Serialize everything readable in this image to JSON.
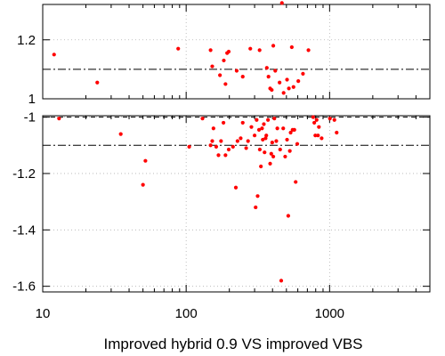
{
  "chart_data": {
    "type": "scatter",
    "xlabel": "Improved hybrid 0.9 VS improved VBS",
    "x_scale": "log",
    "xlim": [
      10,
      5000
    ],
    "x_ticks": [
      10,
      100,
      1000
    ],
    "x_tick_labels": [
      "10",
      "100",
      "1000"
    ],
    "grid": true,
    "point_color": "#ff0000",
    "panels": [
      {
        "name": "upper",
        "ylim": [
          1.0,
          1.32
        ],
        "y_ticks": [
          1.0,
          1.2
        ],
        "y_tick_labels": [
          "1",
          "1.2"
        ],
        "ref_lines": [
          {
            "y": 1.1,
            "style": "dash-dot"
          },
          {
            "y": 1.0,
            "style": "dash"
          }
        ],
        "points": [
          [
            12,
            1.15
          ],
          [
            24,
            1.055
          ],
          [
            88,
            1.17
          ],
          [
            148,
            1.165
          ],
          [
            152,
            1.11
          ],
          [
            172,
            1.08
          ],
          [
            183,
            1.13
          ],
          [
            188,
            1.05
          ],
          [
            193,
            1.155
          ],
          [
            198,
            1.16
          ],
          [
            225,
            1.095
          ],
          [
            248,
            1.075
          ],
          [
            280,
            1.17
          ],
          [
            325,
            1.165
          ],
          [
            365,
            1.105
          ],
          [
            375,
            1.075
          ],
          [
            385,
            1.035
          ],
          [
            395,
            1.03
          ],
          [
            405,
            1.18
          ],
          [
            418,
            1.095
          ],
          [
            448,
            1.055
          ],
          [
            465,
            1.325
          ],
          [
            478,
            1.02
          ],
          [
            505,
            1.065
          ],
          [
            520,
            1.035
          ],
          [
            545,
            1.175
          ],
          [
            560,
            1.04
          ],
          [
            605,
            1.06
          ],
          [
            652,
            1.085
          ],
          [
            712,
            1.165
          ]
        ]
      },
      {
        "name": "lower",
        "ylim": [
          -1.62,
          -0.995
        ],
        "y_ticks": [
          -1.0,
          -1.2,
          -1.4,
          -1.6
        ],
        "y_tick_labels": [
          "-1",
          "-1.2",
          "-1.4",
          "-1.6"
        ],
        "ref_lines": [
          {
            "y": -1.0,
            "style": "dash"
          },
          {
            "y": -1.1,
            "style": "dash-dot"
          }
        ],
        "points": [
          [
            13,
            -1.005
          ],
          [
            35,
            -1.06
          ],
          [
            50,
            -1.24
          ],
          [
            52,
            -1.155
          ],
          [
            105,
            -1.105
          ],
          [
            130,
            -1.005
          ],
          [
            148,
            -1.1
          ],
          [
            152,
            -1.085
          ],
          [
            155,
            -1.04
          ],
          [
            162,
            -1.105
          ],
          [
            168,
            -1.135
          ],
          [
            175,
            -1.085
          ],
          [
            182,
            -1.02
          ],
          [
            188,
            -1.135
          ],
          [
            198,
            -1.115
          ],
          [
            212,
            -1.105
          ],
          [
            222,
            -1.25
          ],
          [
            228,
            -1.085
          ],
          [
            240,
            -1.075
          ],
          [
            248,
            -1.02
          ],
          [
            262,
            -1.11
          ],
          [
            270,
            -1.085
          ],
          [
            285,
            -1.035
          ],
          [
            300,
            -1.065
          ],
          [
            305,
            -1.32
          ],
          [
            310,
            -1.01
          ],
          [
            315,
            -1.28
          ],
          [
            322,
            -1.045
          ],
          [
            326,
            -1.115
          ],
          [
            332,
            -1.175
          ],
          [
            338,
            -1.04
          ],
          [
            342,
            -1.08
          ],
          [
            348,
            -1.025
          ],
          [
            352,
            -1.125
          ],
          [
            358,
            -1.075
          ],
          [
            362,
            -1.065
          ],
          [
            372,
            -1.01
          ],
          [
            385,
            -1.165
          ],
          [
            392,
            -1.13
          ],
          [
            398,
            -1.09
          ],
          [
            405,
            -1.14
          ],
          [
            412,
            -1.005
          ],
          [
            425,
            -1.085
          ],
          [
            432,
            -1.04
          ],
          [
            452,
            -1.115
          ],
          [
            460,
            -1.58
          ],
          [
            475,
            -1.04
          ],
          [
            490,
            -1.14
          ],
          [
            505,
            -1.08
          ],
          [
            515,
            -1.35
          ],
          [
            528,
            -1.12
          ],
          [
            535,
            -1.055
          ],
          [
            552,
            -1.045
          ],
          [
            568,
            -1.045
          ],
          [
            580,
            -1.23
          ],
          [
            595,
            -1.095
          ],
          [
            768,
            -1.0
          ],
          [
            782,
            -1.02
          ],
          [
            795,
            -1.065
          ],
          [
            812,
            -1.01
          ],
          [
            830,
            -1.065
          ],
          [
            842,
            -1.035
          ],
          [
            880,
            -1.075
          ],
          [
            1005,
            -1.005
          ],
          [
            1080,
            -1.01
          ],
          [
            1120,
            -1.055
          ]
        ]
      }
    ]
  }
}
